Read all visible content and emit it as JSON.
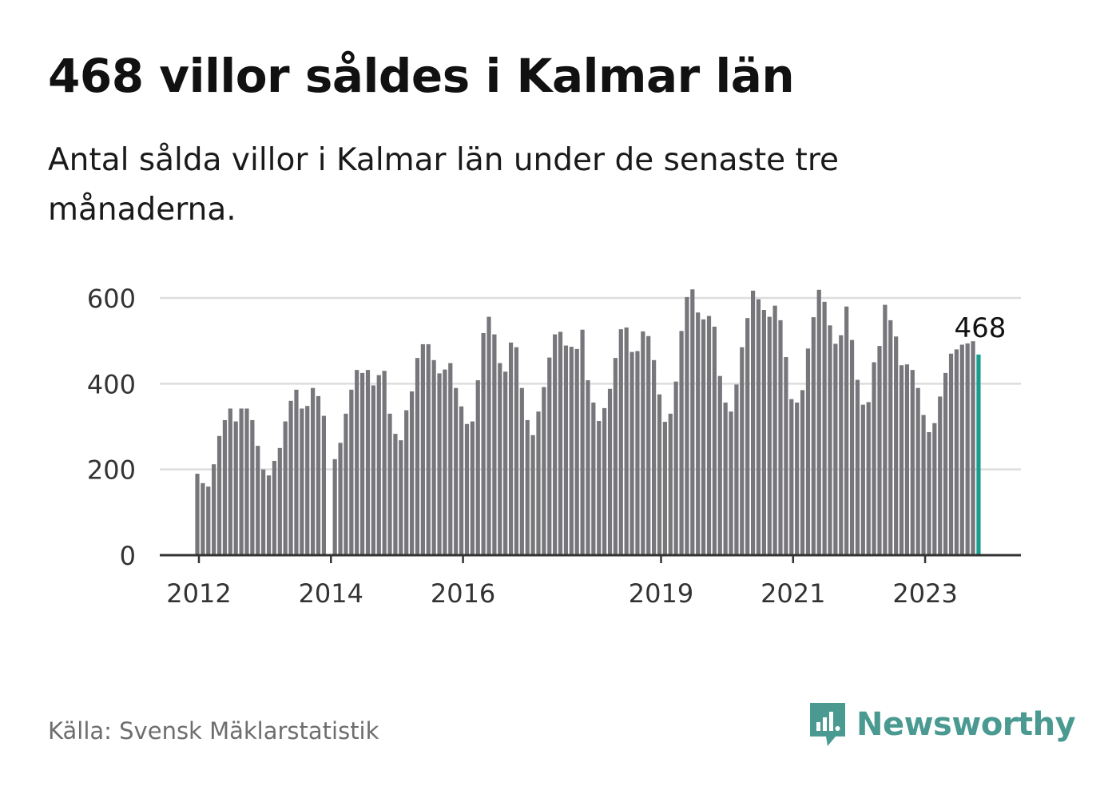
{
  "header": {
    "title": "468 villor såldes i Kalmar län",
    "subtitle": "Antal sålda villor i Kalmar län under de senaste tre månaderna."
  },
  "footer": {
    "source": "Källa: Svensk Mäklarstatistik",
    "brand": "Newsworthy"
  },
  "colors": {
    "bar": "#76767b",
    "highlight": "#1a9d8f",
    "grid": "#dddddd",
    "axis": "#333333",
    "brand": "#4a9a92"
  },
  "chart_data": {
    "type": "bar",
    "title": "468 villor såldes i Kalmar län",
    "xlabel": "",
    "ylabel": "",
    "ylim": [
      0,
      650
    ],
    "yticks": [
      0,
      200,
      400,
      600
    ],
    "xtick_labels": [
      "2012",
      "2014",
      "2016",
      "2019",
      "2021",
      "2023"
    ],
    "xtick_positions": [
      0,
      24,
      48,
      84,
      108,
      132
    ],
    "highlight_label": "468",
    "values": [
      190,
      168,
      160,
      212,
      278,
      315,
      342,
      312,
      342,
      342,
      315,
      255,
      200,
      186,
      220,
      250,
      312,
      360,
      386,
      342,
      348,
      390,
      371,
      325,
      null,
      224,
      262,
      330,
      386,
      432,
      425,
      432,
      396,
      420,
      430,
      330,
      283,
      268,
      338,
      382,
      460,
      492,
      492,
      455,
      424,
      433,
      448,
      390,
      347,
      306,
      312,
      408,
      518,
      556,
      515,
      448,
      428,
      496,
      485,
      390,
      315,
      280,
      335,
      392,
      461,
      515,
      521,
      489,
      486,
      481,
      526,
      408,
      356,
      313,
      343,
      388,
      460,
      527,
      531,
      474,
      476,
      522,
      511,
      455,
      375,
      311,
      330,
      405,
      523,
      602,
      620,
      566,
      550,
      558,
      533,
      418,
      356,
      335,
      398,
      485,
      553,
      617,
      597,
      572,
      556,
      582,
      548,
      462,
      364,
      356,
      385,
      482,
      555,
      619,
      591,
      536,
      493,
      513,
      580,
      502,
      409,
      351,
      357,
      450,
      488,
      584,
      548,
      510,
      443,
      445,
      432,
      390,
      327,
      287,
      308,
      370,
      425,
      470,
      480,
      491,
      494,
      499,
      468
    ]
  }
}
